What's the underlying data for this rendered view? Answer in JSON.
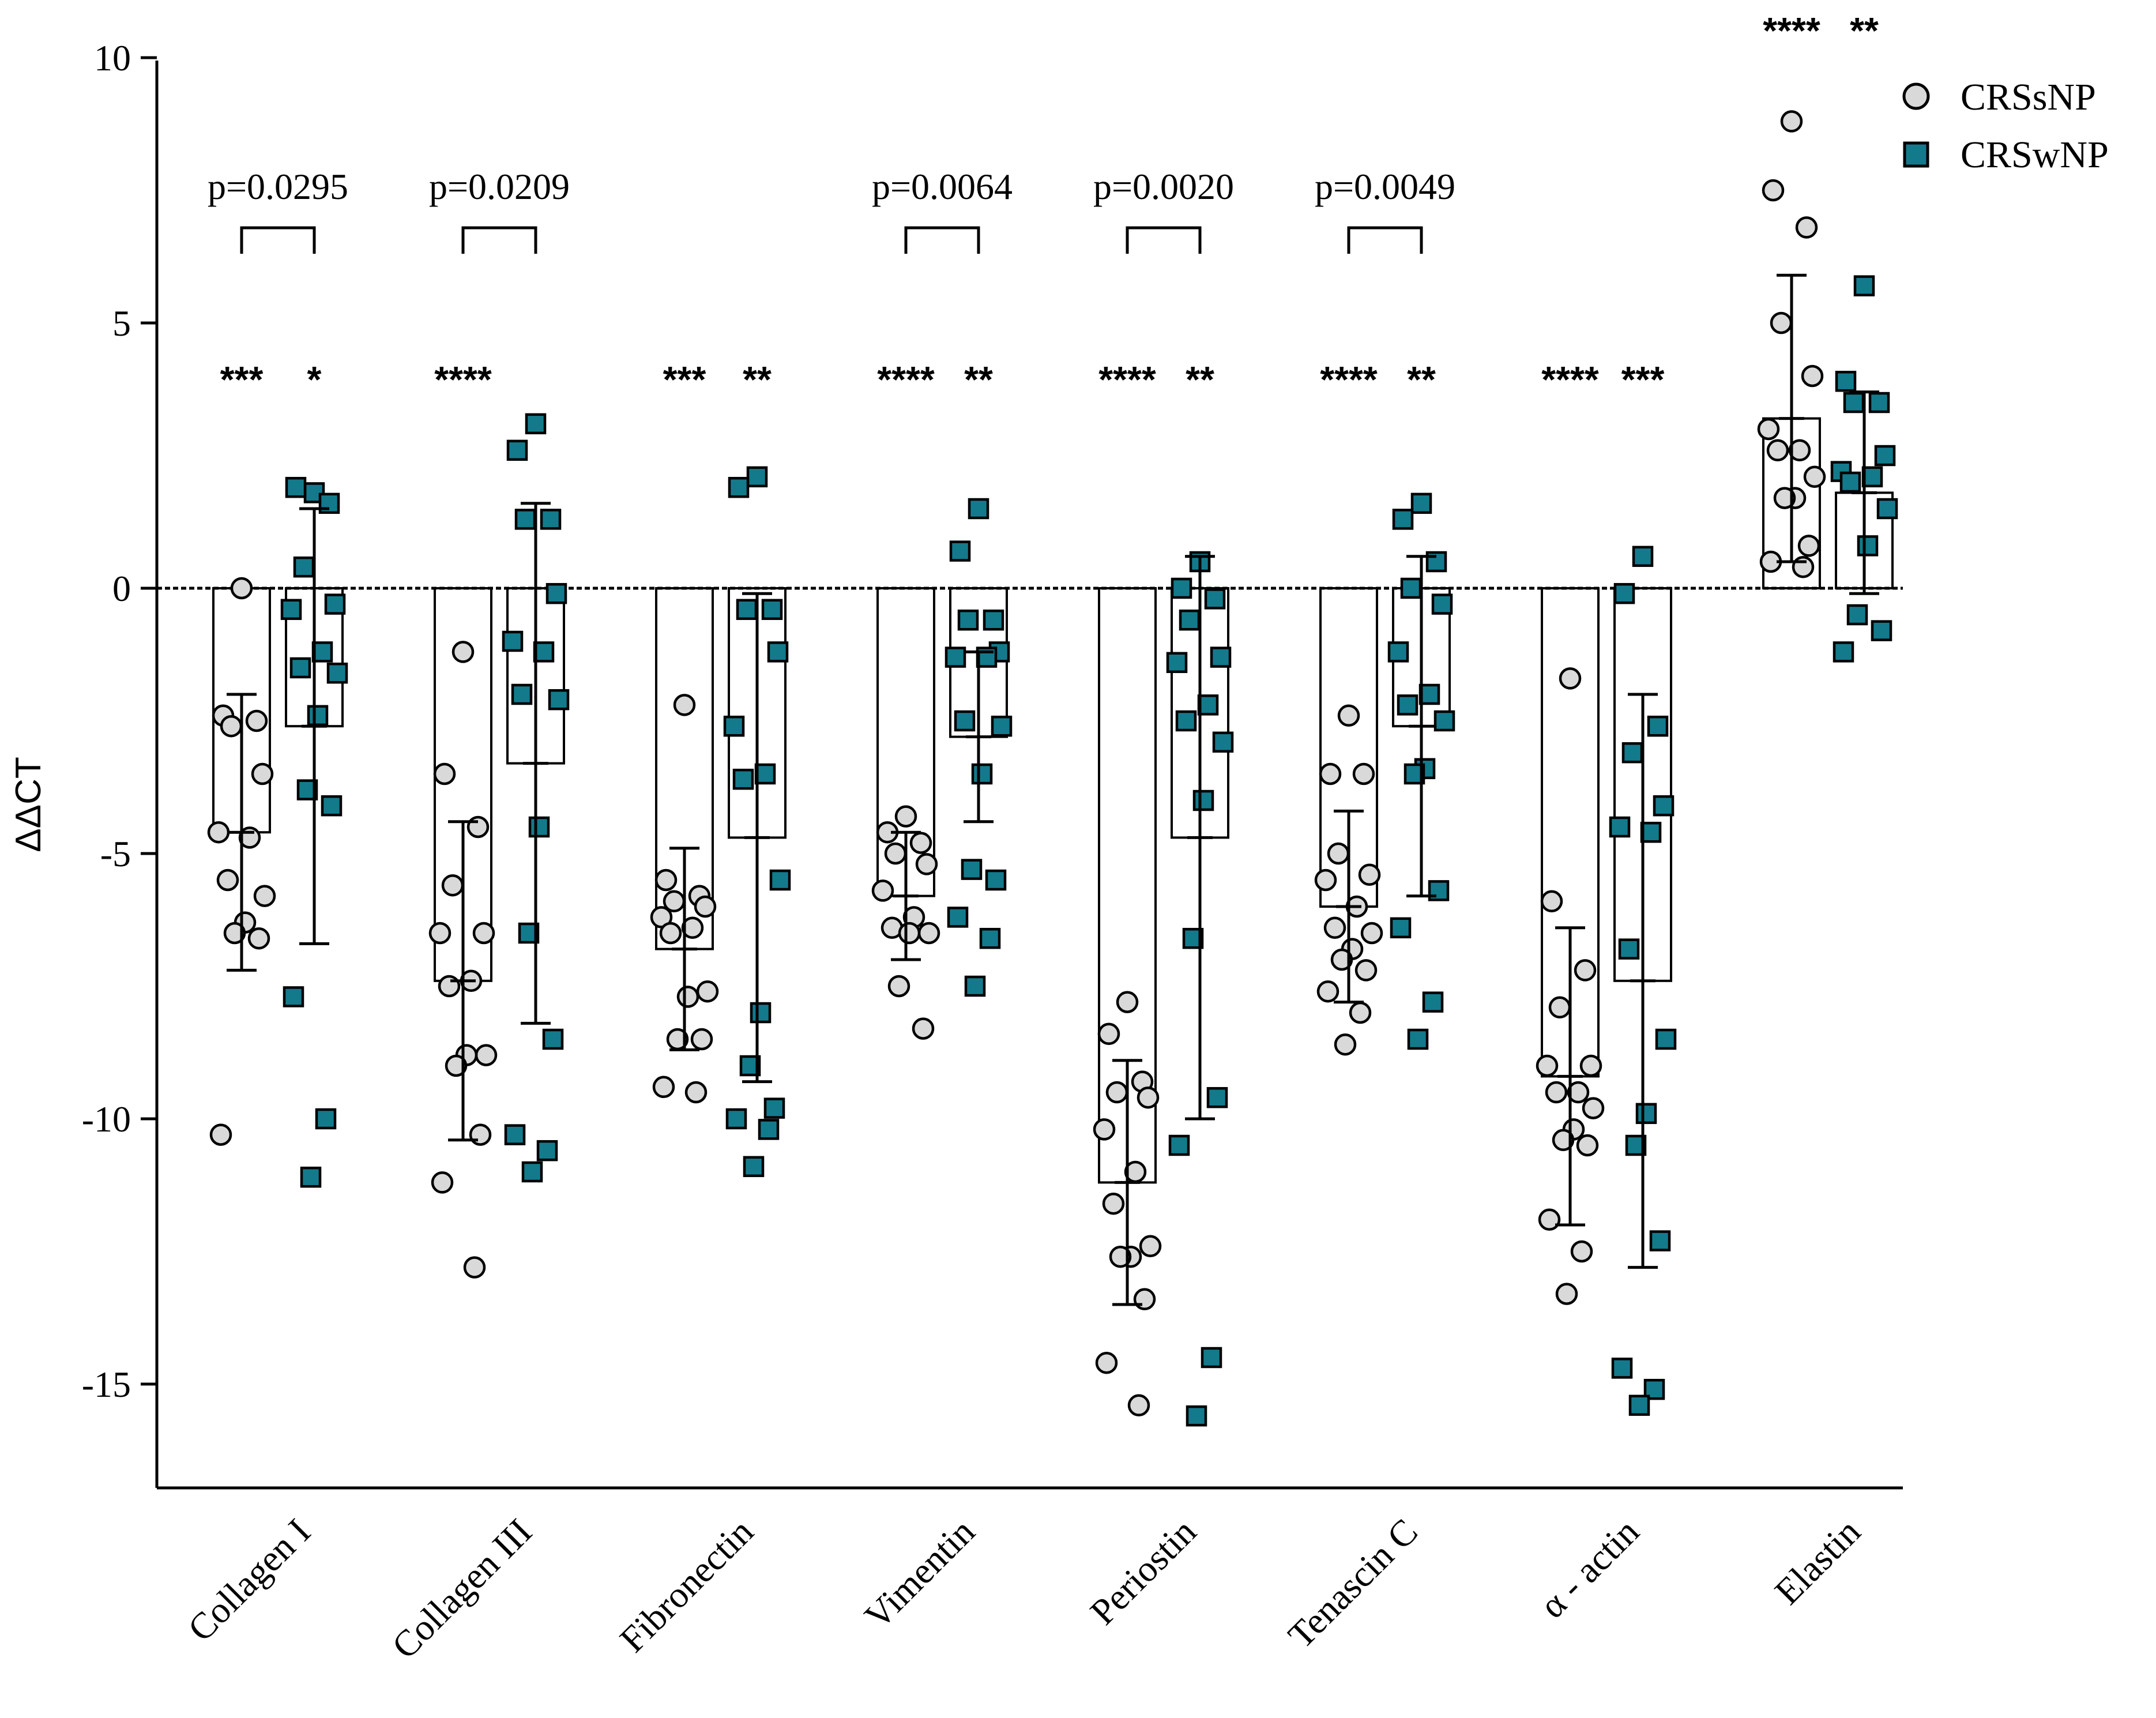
{
  "chart_data": {
    "type": "bar",
    "ylabel": "ΔΔCT",
    "ylim": [
      -17,
      10
    ],
    "yticks": [
      10,
      5,
      0,
      -5,
      -10,
      -15
    ],
    "ytick_labels": [
      "10",
      "5",
      "0",
      "-5",
      "-10",
      "-15"
    ],
    "categories": [
      "Collagen I",
      "Collagen III",
      "Fibronectin",
      "Vimentin",
      "Periostin",
      "Tenascin C",
      "α - actin",
      "Elastin"
    ],
    "legend": {
      "placement": "top-right",
      "entries": [
        {
          "name": "CRSsNP",
          "marker": "circle"
        },
        {
          "name": "CRSwNP",
          "marker": "square"
        }
      ]
    },
    "colors": {
      "CRSsNP": "#d9d9d9",
      "CRSwNP": "#137a8c",
      "stroke": "#000000"
    },
    "series": [
      {
        "name": "CRSsNP",
        "means": [
          -4.6,
          -7.4,
          -6.8,
          -5.8,
          -11.2,
          -6.0,
          -9.2,
          3.2
        ],
        "sd": [
          2.6,
          3.0,
          1.9,
          1.2,
          2.3,
          1.8,
          2.8,
          2.7
        ],
        "points": [
          [
            0.0,
            -2.4,
            -2.5,
            -2.6,
            -3.5,
            -4.6,
            -4.7,
            -5.5,
            -5.8,
            -6.3,
            -6.5,
            -6.6,
            -10.3
          ],
          [
            -1.2,
            -3.5,
            -4.5,
            -5.6,
            -6.5,
            -6.5,
            -7.4,
            -7.5,
            -8.8,
            -8.8,
            -9.0,
            -10.3,
            -11.2,
            -12.8
          ],
          [
            -2.2,
            -5.5,
            -5.8,
            -5.9,
            -6.0,
            -6.2,
            -6.4,
            -6.5,
            -7.6,
            -7.7,
            -8.5,
            -8.5,
            -9.4,
            -9.5
          ],
          [
            -4.3,
            -4.6,
            -4.8,
            -5.0,
            -5.2,
            -5.7,
            -6.2,
            -6.4,
            -6.5,
            -6.5,
            -7.5,
            -8.3
          ],
          [
            -7.8,
            -8.4,
            -9.3,
            -9.5,
            -9.6,
            -10.2,
            -11.0,
            -11.6,
            -12.4,
            -12.6,
            -12.6,
            -13.4,
            -14.6,
            -15.4
          ],
          [
            -2.4,
            -3.5,
            -3.5,
            -5.0,
            -5.4,
            -5.5,
            -6.0,
            -6.4,
            -6.5,
            -6.8,
            -7.0,
            -7.2,
            -7.6,
            -8.0,
            -8.6
          ],
          [
            -1.7,
            -5.9,
            -7.2,
            -7.9,
            -9.0,
            -9.0,
            -9.5,
            -9.5,
            -9.8,
            -10.2,
            -10.4,
            -10.5,
            -11.9,
            -12.5,
            -13.3
          ],
          [
            8.8,
            7.5,
            6.8,
            5.0,
            4.0,
            3.0,
            2.6,
            2.6,
            2.1,
            1.7,
            1.7,
            0.8,
            0.5,
            0.4
          ]
        ]
      },
      {
        "name": "CRSwNP",
        "means": [
          -2.6,
          -3.3,
          -4.7,
          -2.8,
          -4.7,
          -2.6,
          -7.4,
          1.8
        ],
        "sd": [
          4.1,
          4.9,
          4.6,
          1.6,
          5.3,
          3.2,
          5.4,
          1.9
        ],
        "points": [
          [
            1.8,
            1.9,
            1.6,
            0.4,
            -0.3,
            -0.4,
            -1.2,
            -1.5,
            -1.6,
            -2.4,
            -3.8,
            -4.1,
            -7.7,
            -10.0,
            -11.1
          ],
          [
            3.1,
            2.6,
            1.3,
            1.3,
            -0.1,
            -1.0,
            -1.2,
            -2.0,
            -2.1,
            -4.5,
            -6.5,
            -8.5,
            -10.3,
            -10.6,
            -11.0
          ],
          [
            2.1,
            1.9,
            -0.4,
            -0.4,
            -1.2,
            -2.6,
            -3.5,
            -3.6,
            -5.5,
            -8.0,
            -9.0,
            -9.8,
            -10.0,
            -10.2,
            -10.9
          ],
          [
            1.5,
            0.7,
            -0.6,
            -0.6,
            -1.2,
            -1.3,
            -1.3,
            -2.5,
            -2.6,
            -3.5,
            -5.3,
            -5.5,
            -6.2,
            -6.6,
            -7.5
          ],
          [
            0.5,
            0.0,
            -0.2,
            -0.6,
            -1.3,
            -1.4,
            -2.2,
            -2.5,
            -2.9,
            -4.0,
            -6.6,
            -9.6,
            -10.5,
            -14.5,
            -15.6
          ],
          [
            1.6,
            1.3,
            0.5,
            0.0,
            -0.3,
            -1.2,
            -2.0,
            -2.2,
            -2.5,
            -3.4,
            -3.5,
            -5.7,
            -6.4,
            -7.8,
            -8.5
          ],
          [
            0.6,
            -0.1,
            -2.6,
            -3.1,
            -4.1,
            -4.5,
            -4.6,
            -6.8,
            -8.5,
            -9.9,
            -10.5,
            -12.3,
            -14.7,
            -15.1,
            -15.4
          ],
          [
            5.7,
            3.9,
            3.5,
            3.5,
            2.5,
            2.2,
            2.1,
            2.0,
            1.5,
            0.8,
            -0.5,
            -0.8,
            -1.2
          ]
        ]
      }
    ],
    "significance_vs_zero": [
      {
        "CRSsNP": "***",
        "CRSwNP": "*"
      },
      {
        "CRSsNP": "****",
        "CRSwNP": ""
      },
      {
        "CRSsNP": "***",
        "CRSwNP": "**"
      },
      {
        "CRSsNP": "****",
        "CRSwNP": "**"
      },
      {
        "CRSsNP": "****",
        "CRSwNP": "**"
      },
      {
        "CRSsNP": "****",
        "CRSwNP": "**"
      },
      {
        "CRSsNP": "****",
        "CRSwNP": "***"
      },
      {
        "CRSsNP": "****",
        "CRSwNP": "**"
      }
    ],
    "comparisons": [
      {
        "category": "Collagen I",
        "label": "p=0.0295"
      },
      {
        "category": "Collagen III",
        "label": "p=0.0209"
      },
      {
        "category": "Vimentin",
        "label": "p=0.0064"
      },
      {
        "category": "Periostin",
        "label": "p=0.0020"
      },
      {
        "category": "Tenascin C",
        "label": "p=0.0049"
      }
    ]
  }
}
